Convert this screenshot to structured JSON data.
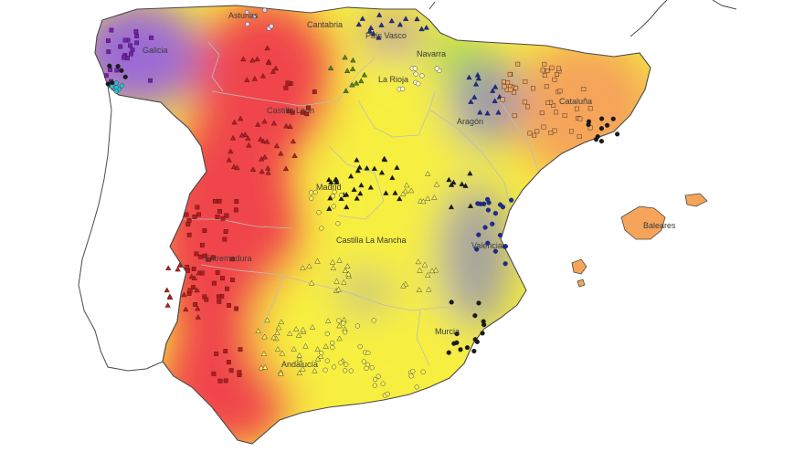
{
  "map": {
    "region_labels": {
      "galicia": "Galicia",
      "asturias": "Asturias",
      "cantabria": "Cantabria",
      "pais_vasco": "País Vasco",
      "navarra": "Navarra",
      "la_rioja": "La Rioja",
      "castilla_leon": "Castilla León",
      "aragon": "Aragón",
      "cataluna": "Cataluña",
      "madrid": "Madrid",
      "castilla_la_mancha": "Castilla La Mancha",
      "extremadura": "Extremadura",
      "valencia": "Valencia",
      "murcia": "Murcia",
      "andalucia": "Andalucía",
      "baleares": "Baleares"
    },
    "colors": {
      "galicia_zone": "#9b6bd6",
      "west_zone": "#f0454b",
      "center_zone": "#f7ef3f",
      "east_zone": "#f5a45a",
      "transition_zone": "#8f8fb8",
      "north_green": "#8fd14f",
      "border": "#4a4a4a",
      "internal_border": "#b8b8b8",
      "sea": "#ffffff"
    },
    "marker_colors": {
      "red_triangle": "#c01818",
      "yellow_circle": "#f4f060",
      "blue_triangle": "#1b2a9c",
      "purple_square": "#7c1ab8",
      "orange_square": "#f2a25c",
      "dark": "#1a1a1a",
      "green": "#4a8a1c",
      "cyan": "#27c3d8"
    }
  }
}
